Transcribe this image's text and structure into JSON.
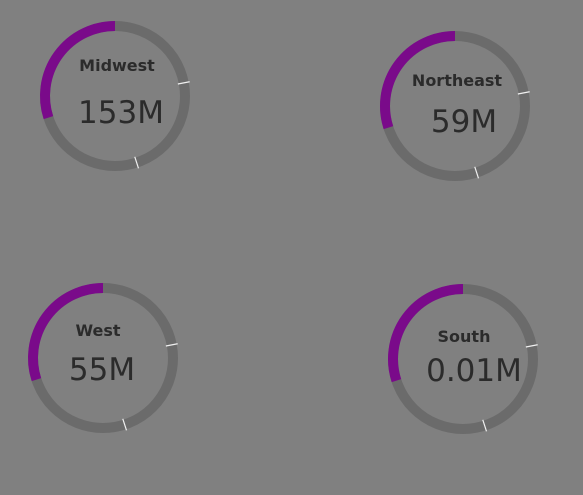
{
  "colors": {
    "background": "#808080",
    "track": "#6b6b6b",
    "fill": "#7a0a8a",
    "tick": "#f0f0f0",
    "text": "#2b2b2b"
  },
  "chart_data": {
    "type": "gauge",
    "gauges": [
      {
        "label": "Midwest",
        "value": "153M",
        "fill_fraction": 0.3,
        "tick_fractions": [
          0.22,
          0.45
        ]
      },
      {
        "label": "Northeast",
        "value": "59M",
        "fill_fraction": 0.3,
        "tick_fractions": [
          0.22,
          0.45
        ]
      },
      {
        "label": "West",
        "value": "55M",
        "fill_fraction": 0.3,
        "tick_fractions": [
          0.22,
          0.45
        ]
      },
      {
        "label": "South",
        "value": "0.01M",
        "fill_fraction": 0.3,
        "tick_fractions": [
          0.22,
          0.45
        ]
      }
    ]
  }
}
